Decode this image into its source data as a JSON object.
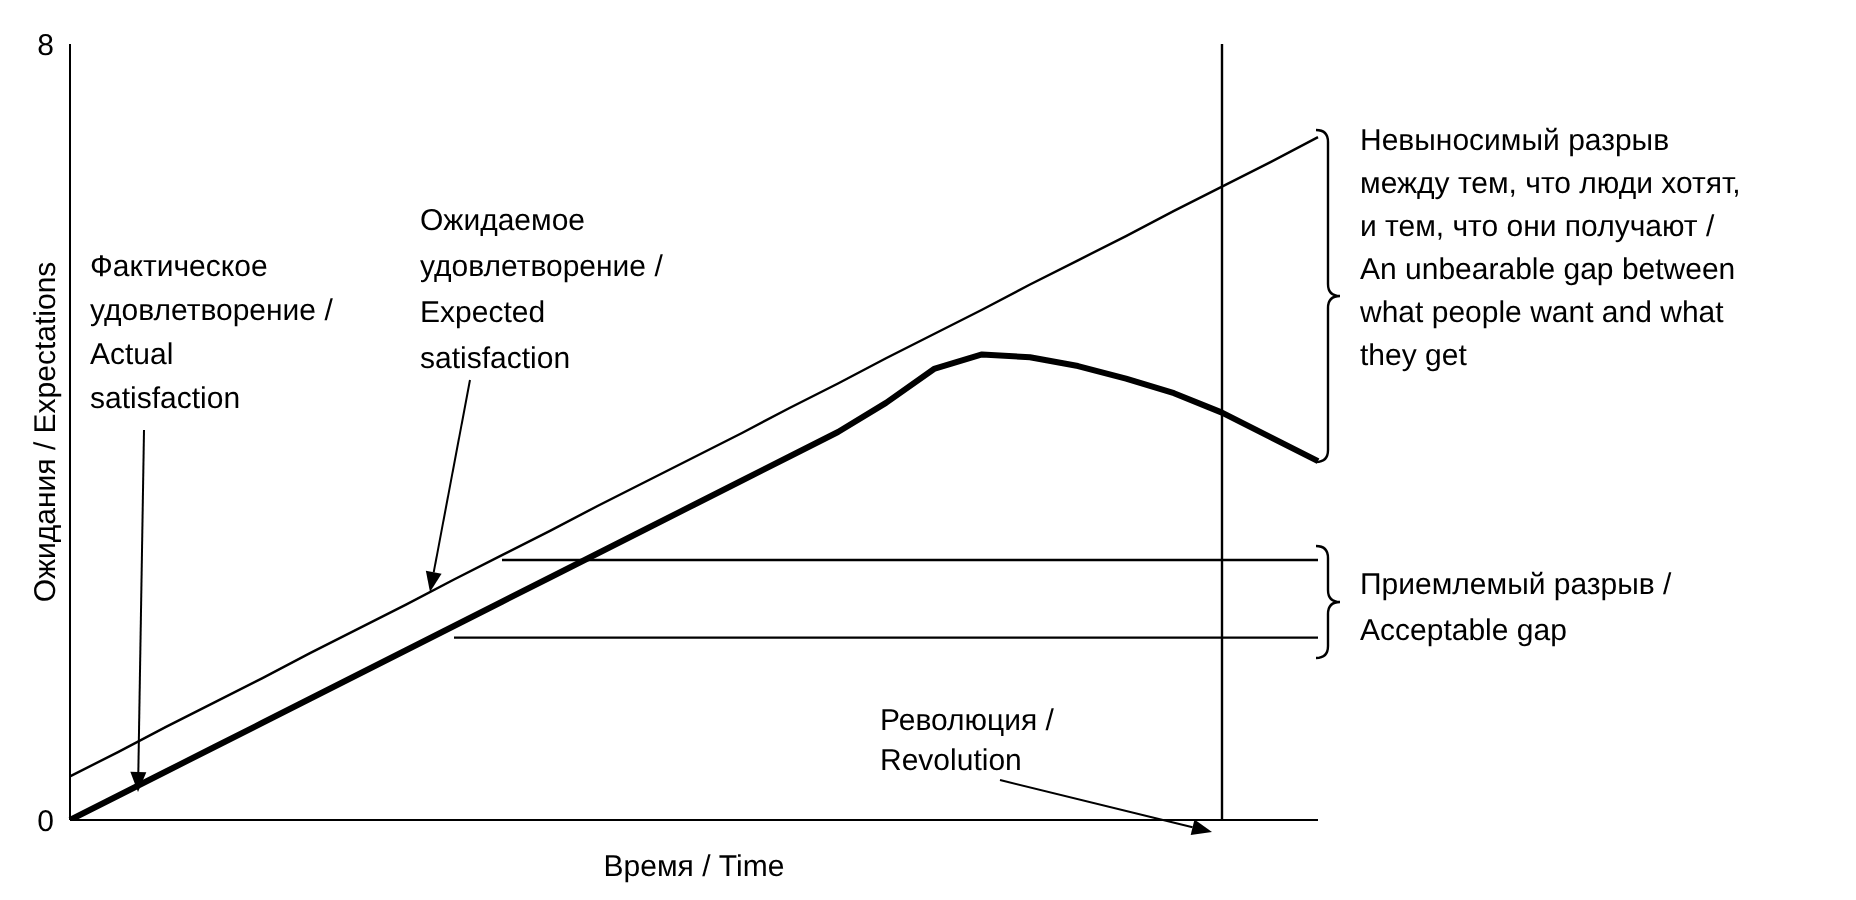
{
  "chart_data": {
    "type": "line",
    "xlabel": "Время / Time",
    "ylabel": "Ожидания / Expectations",
    "categories": [
      null,
      null,
      null,
      null,
      null,
      null,
      null,
      null,
      null,
      null,
      null,
      null,
      null,
      null,
      null,
      null,
      null,
      null,
      null,
      null,
      null,
      null,
      null,
      null,
      null,
      null,
      null
    ],
    "series": [
      {
        "color": "#000000",
        "values": [
          0.45,
          0.7,
          0.96,
          1.21,
          1.46,
          1.72,
          1.97,
          2.22,
          2.48,
          2.73,
          2.98,
          3.24,
          3.49,
          3.74,
          3.99,
          4.25,
          4.5,
          4.76,
          5.01,
          5.26,
          5.52,
          5.77,
          6.02,
          6.28,
          6.53,
          6.78,
          7.04
        ]
      },
      {
        "color": "#000000",
        "values": [
          0,
          0.25,
          0.5,
          0.75,
          1.0,
          1.25,
          1.5,
          1.75,
          2.0,
          2.25,
          2.5,
          2.75,
          3.0,
          3.25,
          3.5,
          3.75,
          4.0,
          4.3,
          4.65,
          4.8,
          4.77,
          4.68,
          4.55,
          4.4,
          4.2,
          3.95,
          3.7
        ]
      },
      {
        "color": "#000000",
        "values": [
          null,
          null,
          null,
          null,
          null,
          null,
          null,
          null,
          null,
          2.68,
          2.68,
          2.68,
          2.68,
          2.68,
          2.68,
          2.68,
          2.68,
          2.68,
          2.68,
          2.68,
          2.68,
          2.68,
          2.68,
          2.68,
          2.68,
          2.68,
          2.68
        ]
      },
      {
        "color": "#000000",
        "values": [
          null,
          null,
          null,
          null,
          null,
          null,
          null,
          null,
          1.88,
          1.88,
          1.88,
          1.88,
          1.88,
          1.88,
          1.88,
          1.88,
          1.88,
          1.88,
          1.88,
          1.88,
          1.88,
          1.88,
          1.88,
          1.88,
          1.88,
          1.88,
          1.88
        ]
      }
    ],
    "ylim": [
      0,
      8
    ],
    "yticks": [
      0,
      8
    ],
    "tick_labels": "y",
    "grid": false,
    "annotations": [
      "Фактическое\nудовлетворение /\nActual\nsatisfaction",
      "Ожидаемое\nудовлетворение /\nExpected\nsatisfaction",
      "Невыносимый разрыв\nмежду тем, что люди хотят,\nи тем, что они получают /\nAn unbearable gap between\nwhat people want and what\nthey get",
      "Приемлемый разрыв /\nAcceptable gap",
      "Революция /\nRevolution"
    ]
  }
}
